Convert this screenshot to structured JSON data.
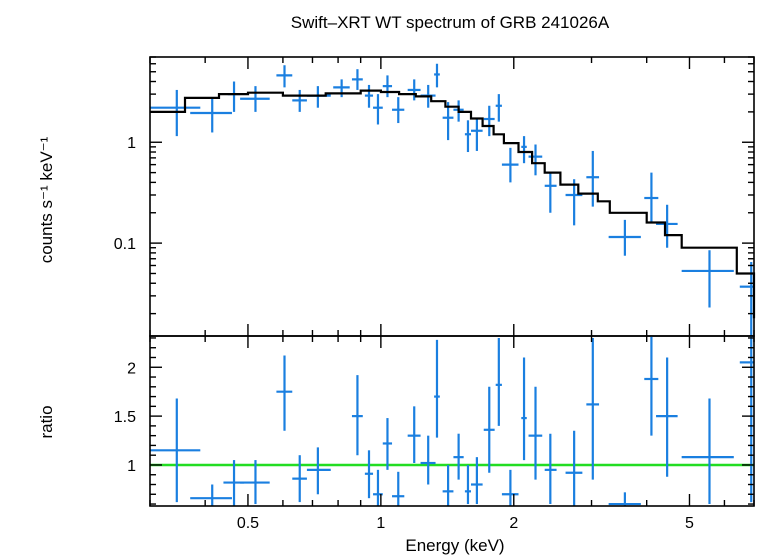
{
  "chart_data": [
    {
      "type": "scatter",
      "title": "Swift–XRT WT spectrum of GRB 241026A",
      "ylabel": "counts s⁻¹ keV⁻¹",
      "xlabel": "",
      "xscale": "log",
      "yscale": "log",
      "xlim": [
        0.3,
        7.0
      ],
      "ylim": [
        0.012,
        7.0
      ],
      "x_ticks": [
        0.5,
        1,
        2,
        5
      ],
      "y_ticks": [
        {
          "value": 1,
          "label": "1"
        },
        {
          "value": 0.1,
          "label": "0.1"
        }
      ],
      "series": [
        {
          "kind": "data",
          "color": "#1a7fe0",
          "points": [
            {
              "x": 0.345,
              "xlo": 0.3,
              "xhi": 0.39,
              "y": 2.2,
              "ylo": 1.15,
              "yhi": 3.3
            },
            {
              "x": 0.415,
              "xlo": 0.37,
              "xhi": 0.46,
              "y": 1.95,
              "ylo": 1.25,
              "yhi": 2.7
            },
            {
              "x": 0.465,
              "xlo": 0.45,
              "xhi": 0.48,
              "y": 3.0,
              "ylo": 2.0,
              "yhi": 4.0
            },
            {
              "x": 0.52,
              "xlo": 0.48,
              "xhi": 0.56,
              "y": 2.7,
              "ylo": 2.0,
              "yhi": 3.6
            },
            {
              "x": 0.605,
              "xlo": 0.58,
              "xhi": 0.63,
              "y": 4.6,
              "ylo": 3.5,
              "yhi": 5.8
            },
            {
              "x": 0.655,
              "xlo": 0.63,
              "xhi": 0.68,
              "y": 2.6,
              "ylo": 2.0,
              "yhi": 3.3
            },
            {
              "x": 0.72,
              "xlo": 0.68,
              "xhi": 0.77,
              "y": 2.9,
              "ylo": 2.2,
              "yhi": 3.6
            },
            {
              "x": 0.815,
              "xlo": 0.78,
              "xhi": 0.85,
              "y": 3.5,
              "ylo": 2.8,
              "yhi": 4.2
            },
            {
              "x": 0.885,
              "xlo": 0.86,
              "xhi": 0.91,
              "y": 4.2,
              "ylo": 3.3,
              "yhi": 5.3
            },
            {
              "x": 0.94,
              "xlo": 0.92,
              "xhi": 0.96,
              "y": 2.9,
              "ylo": 2.2,
              "yhi": 3.7
            },
            {
              "x": 0.985,
              "xlo": 0.96,
              "xhi": 1.01,
              "y": 2.2,
              "ylo": 1.5,
              "yhi": 3.0
            },
            {
              "x": 1.035,
              "xlo": 1.01,
              "xhi": 1.06,
              "y": 3.6,
              "ylo": 2.8,
              "yhi": 4.6
            },
            {
              "x": 1.095,
              "xlo": 1.06,
              "xhi": 1.13,
              "y": 2.1,
              "ylo": 1.55,
              "yhi": 2.8
            },
            {
              "x": 1.19,
              "xlo": 1.15,
              "xhi": 1.23,
              "y": 3.3,
              "ylo": 2.6,
              "yhi": 4.2
            },
            {
              "x": 1.28,
              "xlo": 1.23,
              "xhi": 1.33,
              "y": 2.9,
              "ylo": 2.2,
              "yhi": 3.7
            },
            {
              "x": 1.34,
              "xlo": 1.32,
              "xhi": 1.36,
              "y": 4.7,
              "ylo": 3.5,
              "yhi": 6.0
            },
            {
              "x": 1.42,
              "xlo": 1.38,
              "xhi": 1.46,
              "y": 1.75,
              "ylo": 1.05,
              "yhi": 2.5
            },
            {
              "x": 1.5,
              "xlo": 1.46,
              "xhi": 1.54,
              "y": 2.1,
              "ylo": 1.6,
              "yhi": 2.6
            },
            {
              "x": 1.575,
              "xlo": 1.55,
              "xhi": 1.6,
              "y": 1.2,
              "ylo": 0.8,
              "yhi": 1.65
            },
            {
              "x": 1.65,
              "xlo": 1.6,
              "xhi": 1.7,
              "y": 1.3,
              "ylo": 0.82,
              "yhi": 1.75
            },
            {
              "x": 1.76,
              "xlo": 1.71,
              "xhi": 1.81,
              "y": 1.7,
              "ylo": 1.15,
              "yhi": 2.3
            },
            {
              "x": 1.85,
              "xlo": 1.82,
              "xhi": 1.88,
              "y": 2.3,
              "ylo": 1.6,
              "yhi": 3.0
            },
            {
              "x": 1.965,
              "xlo": 1.88,
              "xhi": 2.05,
              "y": 0.6,
              "ylo": 0.4,
              "yhi": 0.88
            },
            {
              "x": 2.11,
              "xlo": 2.08,
              "xhi": 2.14,
              "y": 0.9,
              "ylo": 0.62,
              "yhi": 1.15
            },
            {
              "x": 2.24,
              "xlo": 2.16,
              "xhi": 2.32,
              "y": 0.72,
              "ylo": 0.47,
              "yhi": 0.95
            },
            {
              "x": 2.42,
              "xlo": 2.35,
              "xhi": 2.5,
              "y": 0.37,
              "ylo": 0.2,
              "yhi": 0.5
            },
            {
              "x": 2.74,
              "xlo": 2.62,
              "xhi": 2.86,
              "y": 0.3,
              "ylo": 0.15,
              "yhi": 0.43
            },
            {
              "x": 3.02,
              "xlo": 2.92,
              "xhi": 3.12,
              "y": 0.45,
              "ylo": 0.23,
              "yhi": 0.82
            },
            {
              "x": 3.57,
              "xlo": 3.28,
              "xhi": 3.88,
              "y": 0.115,
              "ylo": 0.075,
              "yhi": 0.17
            },
            {
              "x": 4.1,
              "xlo": 3.95,
              "xhi": 4.25,
              "y": 0.28,
              "ylo": 0.16,
              "yhi": 0.5
            },
            {
              "x": 4.45,
              "xlo": 4.2,
              "xhi": 4.7,
              "y": 0.155,
              "ylo": 0.09,
              "yhi": 0.24
            },
            {
              "x": 5.55,
              "xlo": 4.8,
              "xhi": 6.3,
              "y": 0.053,
              "ylo": 0.023,
              "yhi": 0.085
            },
            {
              "x": 6.9,
              "xlo": 6.5,
              "xhi": 7.0,
              "y": 0.037,
              "ylo": 0.012,
              "yhi": 0.065
            }
          ]
        },
        {
          "kind": "model",
          "color": "#000000",
          "step_x": [
            0.3,
            0.36,
            0.43,
            0.5,
            0.6,
            0.75,
            0.9,
            1.0,
            1.1,
            1.2,
            1.3,
            1.4,
            1.5,
            1.6,
            1.7,
            1.8,
            1.9,
            2.05,
            2.2,
            2.35,
            2.55,
            2.8,
            3.1,
            3.3,
            3.7,
            4.0,
            4.4,
            4.8,
            6.4,
            7.0
          ],
          "step_y": [
            2.0,
            2.75,
            3.0,
            3.1,
            2.9,
            3.05,
            3.25,
            3.15,
            3.0,
            2.85,
            2.55,
            2.25,
            2.0,
            1.72,
            1.45,
            1.2,
            0.98,
            0.8,
            0.62,
            0.5,
            0.38,
            0.31,
            0.26,
            0.2,
            0.2,
            0.16,
            0.12,
            0.09,
            0.05,
            0.018
          ]
        }
      ]
    },
    {
      "type": "scatter",
      "ylabel": "ratio",
      "xlabel": "Energy (keV)",
      "xscale": "log",
      "yscale": "linear",
      "xlim": [
        0.3,
        7.0
      ],
      "ylim": [
        0.58,
        2.32
      ],
      "x_ticks": [
        {
          "value": 0.5,
          "label": "0.5"
        },
        {
          "value": 1,
          "label": "1"
        },
        {
          "value": 2,
          "label": "2"
        },
        {
          "value": 5,
          "label": "5"
        }
      ],
      "y_ticks": [
        {
          "value": 1,
          "label": "1"
        },
        {
          "value": 1.5,
          "label": "1.5"
        },
        {
          "value": 2,
          "label": "2"
        }
      ],
      "reference_line": {
        "y": 1,
        "color": "#22dd22"
      },
      "series": [
        {
          "kind": "data",
          "color": "#1a7fe0",
          "points": [
            {
              "x": 0.345,
              "xlo": 0.3,
              "xhi": 0.39,
              "y": 1.15,
              "ylo": 0.62,
              "yhi": 1.68
            },
            {
              "x": 0.415,
              "xlo": 0.37,
              "xhi": 0.46,
              "y": 0.66,
              "ylo": 0.58,
              "yhi": 0.8
            },
            {
              "x": 0.465,
              "xlo": 0.44,
              "xhi": 0.49,
              "y": 0.82,
              "ylo": 0.58,
              "yhi": 1.05
            },
            {
              "x": 0.52,
              "xlo": 0.48,
              "xhi": 0.56,
              "y": 0.82,
              "ylo": 0.6,
              "yhi": 1.05
            },
            {
              "x": 0.605,
              "xlo": 0.58,
              "xhi": 0.63,
              "y": 1.75,
              "ylo": 1.35,
              "yhi": 2.12
            },
            {
              "x": 0.655,
              "xlo": 0.63,
              "xhi": 0.68,
              "y": 0.86,
              "ylo": 0.62,
              "yhi": 1.1
            },
            {
              "x": 0.72,
              "xlo": 0.68,
              "xhi": 0.77,
              "y": 0.95,
              "ylo": 0.7,
              "yhi": 1.18
            },
            {
              "x": 0.885,
              "xlo": 0.86,
              "xhi": 0.91,
              "y": 1.5,
              "ylo": 1.1,
              "yhi": 1.92
            },
            {
              "x": 0.94,
              "xlo": 0.92,
              "xhi": 0.96,
              "y": 0.91,
              "ylo": 0.66,
              "yhi": 1.15
            },
            {
              "x": 0.985,
              "xlo": 0.96,
              "xhi": 1.01,
              "y": 0.7,
              "ylo": 0.58,
              "yhi": 0.95
            },
            {
              "x": 1.035,
              "xlo": 1.01,
              "xhi": 1.06,
              "y": 1.22,
              "ylo": 0.95,
              "yhi": 1.48
            },
            {
              "x": 1.095,
              "xlo": 1.06,
              "xhi": 1.13,
              "y": 0.68,
              "ylo": 0.58,
              "yhi": 0.93
            },
            {
              "x": 1.19,
              "xlo": 1.15,
              "xhi": 1.23,
              "y": 1.3,
              "ylo": 1.02,
              "yhi": 1.6
            },
            {
              "x": 1.28,
              "xlo": 1.23,
              "xhi": 1.33,
              "y": 1.02,
              "ylo": 0.8,
              "yhi": 1.3
            },
            {
              "x": 1.34,
              "xlo": 1.32,
              "xhi": 1.36,
              "y": 1.7,
              "ylo": 1.28,
              "yhi": 2.28
            },
            {
              "x": 1.42,
              "xlo": 1.38,
              "xhi": 1.46,
              "y": 0.73,
              "ylo": 0.58,
              "yhi": 1.0
            },
            {
              "x": 1.5,
              "xlo": 1.46,
              "xhi": 1.54,
              "y": 1.08,
              "ylo": 0.85,
              "yhi": 1.32
            },
            {
              "x": 1.575,
              "xlo": 1.55,
              "xhi": 1.6,
              "y": 0.73,
              "ylo": 0.6,
              "yhi": 1.0
            },
            {
              "x": 1.65,
              "xlo": 1.6,
              "xhi": 1.7,
              "y": 0.8,
              "ylo": 0.6,
              "yhi": 1.08
            },
            {
              "x": 1.76,
              "xlo": 1.71,
              "xhi": 1.81,
              "y": 1.36,
              "ylo": 0.92,
              "yhi": 1.8
            },
            {
              "x": 1.85,
              "xlo": 1.82,
              "xhi": 1.88,
              "y": 1.82,
              "ylo": 1.4,
              "yhi": 2.3
            },
            {
              "x": 1.965,
              "xlo": 1.88,
              "xhi": 2.05,
              "y": 0.7,
              "ylo": 0.58,
              "yhi": 0.95
            },
            {
              "x": 2.11,
              "xlo": 2.08,
              "xhi": 2.14,
              "y": 1.48,
              "ylo": 1.05,
              "yhi": 2.1
            },
            {
              "x": 2.24,
              "xlo": 2.16,
              "xhi": 2.32,
              "y": 1.3,
              "ylo": 0.85,
              "yhi": 1.8
            },
            {
              "x": 2.42,
              "xlo": 2.35,
              "xhi": 2.5,
              "y": 0.95,
              "ylo": 0.6,
              "yhi": 1.32
            },
            {
              "x": 2.74,
              "xlo": 2.62,
              "xhi": 2.86,
              "y": 0.92,
              "ylo": 0.58,
              "yhi": 1.35
            },
            {
              "x": 3.02,
              "xlo": 2.92,
              "xhi": 3.12,
              "y": 1.62,
              "ylo": 0.85,
              "yhi": 2.3
            },
            {
              "x": 3.57,
              "xlo": 3.28,
              "xhi": 3.88,
              "y": 0.6,
              "ylo": 0.58,
              "yhi": 0.72
            },
            {
              "x": 4.1,
              "xlo": 3.95,
              "xhi": 4.25,
              "y": 1.88,
              "ylo": 1.3,
              "yhi": 2.32
            },
            {
              "x": 4.45,
              "xlo": 4.2,
              "xhi": 4.7,
              "y": 1.5,
              "ylo": 0.88,
              "yhi": 2.1
            },
            {
              "x": 5.55,
              "xlo": 4.8,
              "xhi": 6.3,
              "y": 1.08,
              "ylo": 0.6,
              "yhi": 1.68
            },
            {
              "x": 6.9,
              "xlo": 6.5,
              "xhi": 7.0,
              "y": 2.05,
              "ylo": 0.62,
              "yhi": 2.32
            }
          ]
        }
      ]
    }
  ]
}
